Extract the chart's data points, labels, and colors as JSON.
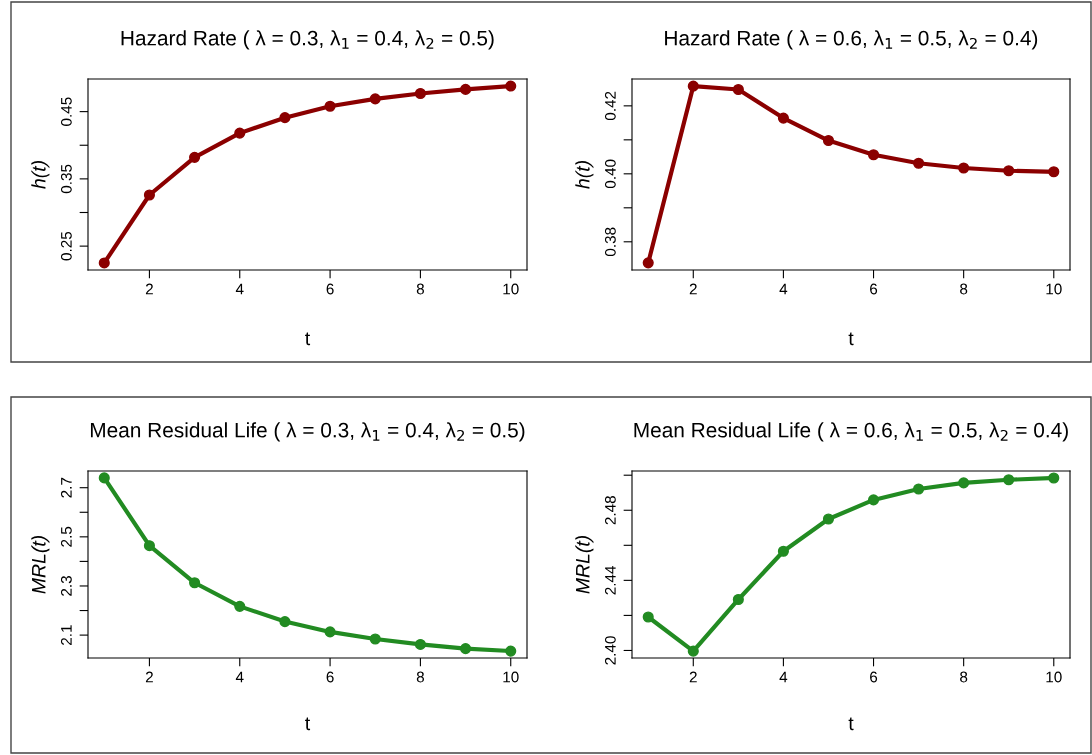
{
  "chart_data": [
    {
      "type": "line",
      "title": "Hazard Rate ( λ = 0.3, λ$_{1}$ = 0.4, λ$_{2}$ = 0.5)",
      "xlabel": "t",
      "ylabel": "h(t)",
      "x": [
        1,
        2,
        3,
        4,
        5,
        6,
        7,
        8,
        9,
        10
      ],
      "series": [
        {
          "color": "#8b0000",
          "values": [
            0.225,
            0.326,
            0.382,
            0.418,
            0.441,
            0.458,
            0.469,
            0.477,
            0.483,
            0.488
          ]
        }
      ],
      "xlim": [
        0.64,
        10.36
      ],
      "xticks": [
        2,
        4,
        6,
        8,
        10
      ],
      "ylim": [
        0.2145,
        0.4985
      ],
      "yticks": [
        0.25,
        {
          "value": 0.3,
          "label": null
        },
        0.35,
        {
          "value": 0.4,
          "label": null
        },
        0.45
      ],
      "marker": "circle",
      "line_style": "solid",
      "grid": false,
      "legend": false
    },
    {
      "type": "line",
      "title": "Hazard Rate ( λ = 0.6, λ$_{1}$ = 0.5, λ$_{2}$ = 0.4)",
      "xlabel": "t",
      "ylabel": "h(t)",
      "x": [
        1,
        2,
        3,
        4,
        5,
        6,
        7,
        8,
        9,
        10
      ],
      "series": [
        {
          "color": "#8b0000",
          "values": [
            0.3738,
            0.4258,
            0.4248,
            0.4164,
            0.4098,
            0.4056,
            0.4031,
            0.4017,
            0.4009,
            0.4006
          ]
        }
      ],
      "xlim": [
        0.64,
        10.36
      ],
      "xticks": [
        2,
        4,
        6,
        8,
        10
      ],
      "ylim": [
        0.3717,
        0.4279
      ],
      "yticks": [
        {
          "value": 0.38,
          "label": "0.38"
        },
        {
          "value": 0.39,
          "label": null
        },
        {
          "value": 0.4,
          "label": "0.40"
        },
        {
          "value": 0.41,
          "label": null
        },
        {
          "value": 0.42,
          "label": "0.42"
        }
      ],
      "marker": "circle",
      "line_style": "solid",
      "grid": false,
      "legend": false
    },
    {
      "type": "line",
      "title": "Mean Residual Life ( λ = 0.3, λ$_{1}$ = 0.4, λ$_{2}$ = 0.5)",
      "xlabel": "t",
      "ylabel": "MRL(t)",
      "x": [
        1,
        2,
        3,
        4,
        5,
        6,
        7,
        8,
        9,
        10
      ],
      "series": [
        {
          "color": "#228b22",
          "values": [
            2.74,
            2.464,
            2.313,
            2.217,
            2.155,
            2.113,
            2.084,
            2.062,
            2.045,
            2.035
          ]
        }
      ],
      "xlim": [
        0.64,
        10.36
      ],
      "xticks": [
        2,
        4,
        6,
        8,
        10
      ],
      "ylim": [
        2.0068,
        2.768
      ],
      "yticks": [
        2.1,
        {
          "value": 2.2,
          "label": null
        },
        2.3,
        {
          "value": 2.4,
          "label": null
        },
        2.5,
        {
          "value": 2.6,
          "label": null
        },
        2.7
      ],
      "marker": "circle",
      "line_style": "solid",
      "grid": false,
      "legend": false
    },
    {
      "type": "line",
      "title": "Mean Residual Life ( λ = 0.6, λ$_{1}$ = 0.5, λ$_{2}$ = 0.4)",
      "xlabel": "t",
      "ylabel": "MRL(t)",
      "x": [
        1,
        2,
        3,
        4,
        5,
        6,
        7,
        8,
        9,
        10
      ],
      "series": [
        {
          "color": "#228b22",
          "values": [
            2.4191,
            2.3996,
            2.4291,
            2.4566,
            2.475,
            2.4859,
            2.4921,
            2.4956,
            2.4974,
            2.4984
          ]
        }
      ],
      "xlim": [
        0.64,
        10.36
      ],
      "xticks": [
        2,
        4,
        6,
        8,
        10
      ],
      "ylim": [
        2.3957,
        2.5024
      ],
      "yticks": [
        {
          "value": 2.4,
          "label": "2.40"
        },
        {
          "value": 2.42,
          "label": null
        },
        {
          "value": 2.44,
          "label": "2.44"
        },
        {
          "value": 2.46,
          "label": null
        },
        {
          "value": 2.48,
          "label": "2.48"
        },
        {
          "value": 2.5,
          "label": null
        }
      ],
      "marker": "circle",
      "line_style": "solid",
      "grid": false,
      "legend": false
    }
  ]
}
